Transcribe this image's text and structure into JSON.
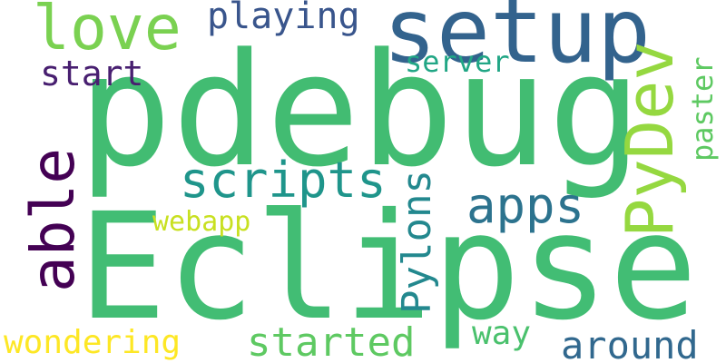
{
  "words": {
    "pdebug": {
      "text": "pdebug",
      "color": "#42bc72"
    },
    "eclipse": {
      "text": "Eclipse",
      "color": "#42bd74"
    },
    "setup": {
      "text": "setup",
      "color": "#33638d"
    },
    "love": {
      "text": "love",
      "color": "#7ad151"
    },
    "playing": {
      "text": "playing",
      "color": "#39558c"
    },
    "start": {
      "text": "start",
      "color": "#481f70"
    },
    "server": {
      "text": "server",
      "color": "#21a685"
    },
    "scripts": {
      "text": "scripts",
      "color": "#1f958b"
    },
    "apps": {
      "text": "apps",
      "color": "#2c738e"
    },
    "webapp": {
      "text": "webapp",
      "color": "#c8e020"
    },
    "wondering": {
      "text": "wondering",
      "color": "#fde725"
    },
    "started": {
      "text": "started",
      "color": "#5ec962"
    },
    "way": {
      "text": "way",
      "color": "#4ac16d"
    },
    "around": {
      "text": "around",
      "color": "#31688e"
    },
    "able": {
      "text": "able",
      "color": "#440154"
    },
    "pydev": {
      "text": "PyDev",
      "color": "#95d840"
    },
    "paster": {
      "text": "paster",
      "color": "#5ec962"
    },
    "pylons": {
      "text": "Pylons",
      "color": "#23888e"
    }
  }
}
